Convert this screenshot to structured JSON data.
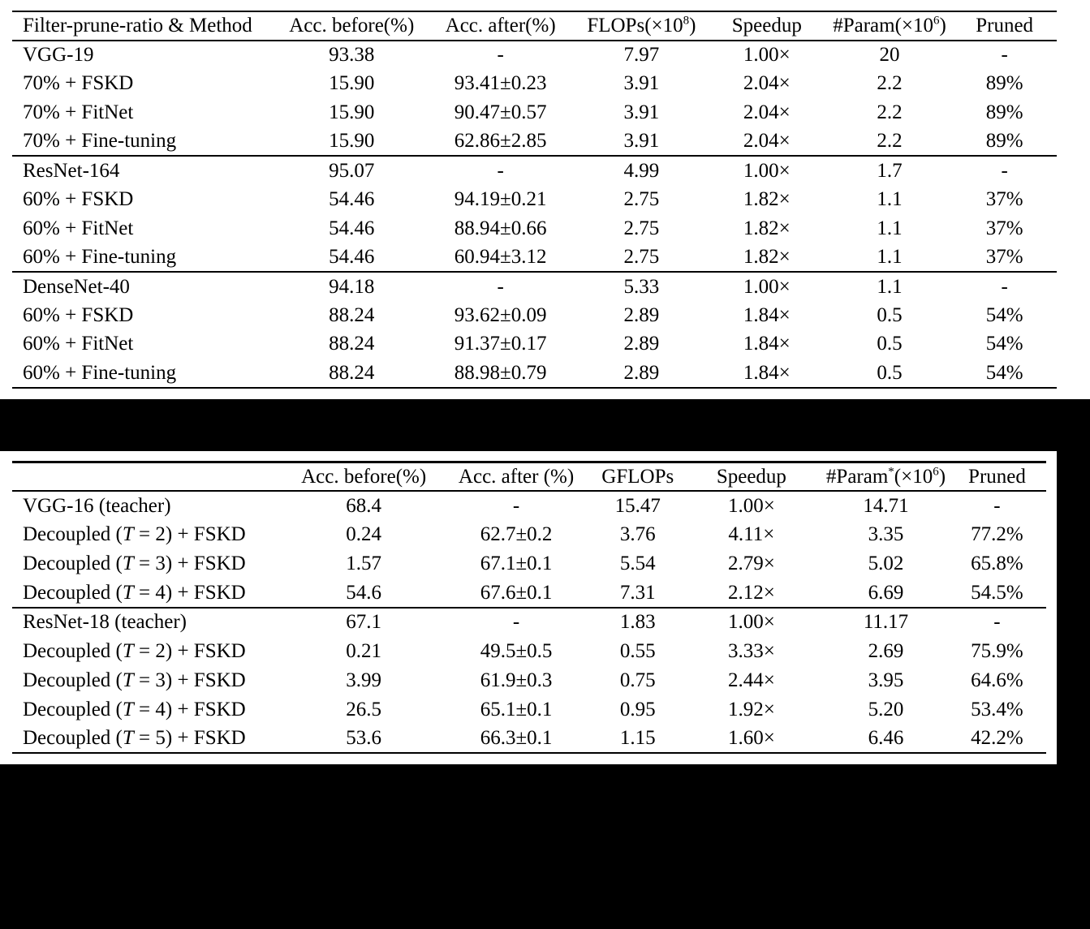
{
  "page": {
    "background_color": "#ffffff",
    "redaction_color": "#000000",
    "text_color": "#000000"
  },
  "table1": {
    "name": "filter-prune-ratio-results",
    "header": [
      [
        {
          "t": "Filter-prune-ratio & Method"
        }
      ],
      [
        {
          "t": "Acc. before(%)"
        }
      ],
      [
        {
          "t": "Acc. after(%)"
        }
      ],
      [
        {
          "t": "FLOPs(×10"
        },
        {
          "t": "8",
          "sup": true
        },
        {
          "t": ")"
        }
      ],
      [
        {
          "t": "Speedup"
        }
      ],
      [
        {
          "t": "#Param(×10"
        },
        {
          "t": "6",
          "sup": true
        },
        {
          "t": ")"
        }
      ],
      [
        {
          "t": "Pruned"
        }
      ]
    ],
    "groups": [
      {
        "rows": [
          [
            "VGG-19",
            "93.38",
            "-",
            "7.97",
            "1.00×",
            "20",
            "-"
          ],
          [
            "70% + FSKD",
            "15.90",
            "93.41±0.23",
            "3.91",
            "2.04×",
            "2.2",
            "89%"
          ],
          [
            "70% + FitNet",
            "15.90",
            "90.47±0.57",
            "3.91",
            "2.04×",
            "2.2",
            "89%"
          ],
          [
            "70% + Fine-tuning",
            "15.90",
            "62.86±2.85",
            "3.91",
            "2.04×",
            "2.2",
            "89%"
          ]
        ]
      },
      {
        "rows": [
          [
            "ResNet-164",
            "95.07",
            "-",
            "4.99",
            "1.00×",
            "1.7",
            "-"
          ],
          [
            "60% + FSKD",
            "54.46",
            "94.19±0.21",
            "2.75",
            "1.82×",
            "1.1",
            "37%"
          ],
          [
            "60% + FitNet",
            "54.46",
            "88.94±0.66",
            "2.75",
            "1.82×",
            "1.1",
            "37%"
          ],
          [
            "60% + Fine-tuning",
            "54.46",
            "60.94±3.12",
            "2.75",
            "1.82×",
            "1.1",
            "37%"
          ]
        ]
      },
      {
        "rows": [
          [
            "DenseNet-40",
            "94.18",
            "-",
            "5.33",
            "1.00×",
            "1.1",
            "-"
          ],
          [
            "60% + FSKD",
            "88.24",
            "93.62±0.09",
            "2.89",
            "1.84×",
            "0.5",
            "54%"
          ],
          [
            "60% + FitNet",
            "88.24",
            "91.37±0.17",
            "2.89",
            "1.84×",
            "0.5",
            "54%"
          ],
          [
            "60% + Fine-tuning",
            "88.24",
            "88.98±0.79",
            "2.89",
            "1.84×",
            "0.5",
            "54%"
          ]
        ]
      }
    ]
  },
  "table2": {
    "name": "decoupled-fskd-results",
    "header": [
      [
        {
          "t": ""
        }
      ],
      [
        {
          "t": "Acc. before(%)"
        }
      ],
      [
        {
          "t": "Acc. after (%)"
        }
      ],
      [
        {
          "t": "GFLOPs"
        }
      ],
      [
        {
          "t": "Speedup"
        }
      ],
      [
        {
          "t": "#Param"
        },
        {
          "t": "*",
          "sup": true
        },
        {
          "t": "(×10"
        },
        {
          "t": "6",
          "sup": true
        },
        {
          "t": ")"
        }
      ],
      [
        {
          "t": "Pruned"
        }
      ]
    ],
    "groups": [
      {
        "rows": [
          [
            "VGG-16 (teacher)",
            "68.4",
            "-",
            "15.47",
            "1.00×",
            "14.71",
            "-"
          ],
          [
            [
              {
                "t": "Decoupled ("
              },
              {
                "t": "T",
                "i": true
              },
              {
                "t": " = 2) + FSKD"
              }
            ],
            "0.24",
            "62.7±0.2",
            "3.76",
            "4.11×",
            "3.35",
            "77.2%"
          ],
          [
            [
              {
                "t": "Decoupled ("
              },
              {
                "t": "T",
                "i": true
              },
              {
                "t": " = 3) + FSKD"
              }
            ],
            "1.57",
            "67.1±0.1",
            "5.54",
            "2.79×",
            "5.02",
            "65.8%"
          ],
          [
            [
              {
                "t": "Decoupled ("
              },
              {
                "t": "T",
                "i": true
              },
              {
                "t": " = 4) + FSKD"
              }
            ],
            "54.6",
            "67.6±0.1",
            "7.31",
            "2.12×",
            "6.69",
            "54.5%"
          ]
        ]
      },
      {
        "rows": [
          [
            "ResNet-18 (teacher)",
            "67.1",
            "-",
            "1.83",
            "1.00×",
            "11.17",
            "-"
          ],
          [
            [
              {
                "t": "Decoupled ("
              },
              {
                "t": "T",
                "i": true
              },
              {
                "t": " = 2) + FSKD"
              }
            ],
            "0.21",
            "49.5±0.5",
            "0.55",
            "3.33×",
            "2.69",
            "75.9%"
          ],
          [
            [
              {
                "t": "Decoupled ("
              },
              {
                "t": "T",
                "i": true
              },
              {
                "t": " = 3) + FSKD"
              }
            ],
            "3.99",
            "61.9±0.3",
            "0.75",
            "2.44×",
            "3.95",
            "64.6%"
          ],
          [
            [
              {
                "t": "Decoupled ("
              },
              {
                "t": "T",
                "i": true
              },
              {
                "t": " = 4) + FSKD"
              }
            ],
            "26.5",
            "65.1±0.1",
            "0.95",
            "1.92×",
            "5.20",
            "53.4%"
          ],
          [
            [
              {
                "t": "Decoupled ("
              },
              {
                "t": "T",
                "i": true
              },
              {
                "t": " = 5) + FSKD"
              }
            ],
            "53.6",
            "66.3±0.1",
            "1.15",
            "1.60×",
            "6.46",
            "42.2%"
          ]
        ]
      }
    ]
  }
}
